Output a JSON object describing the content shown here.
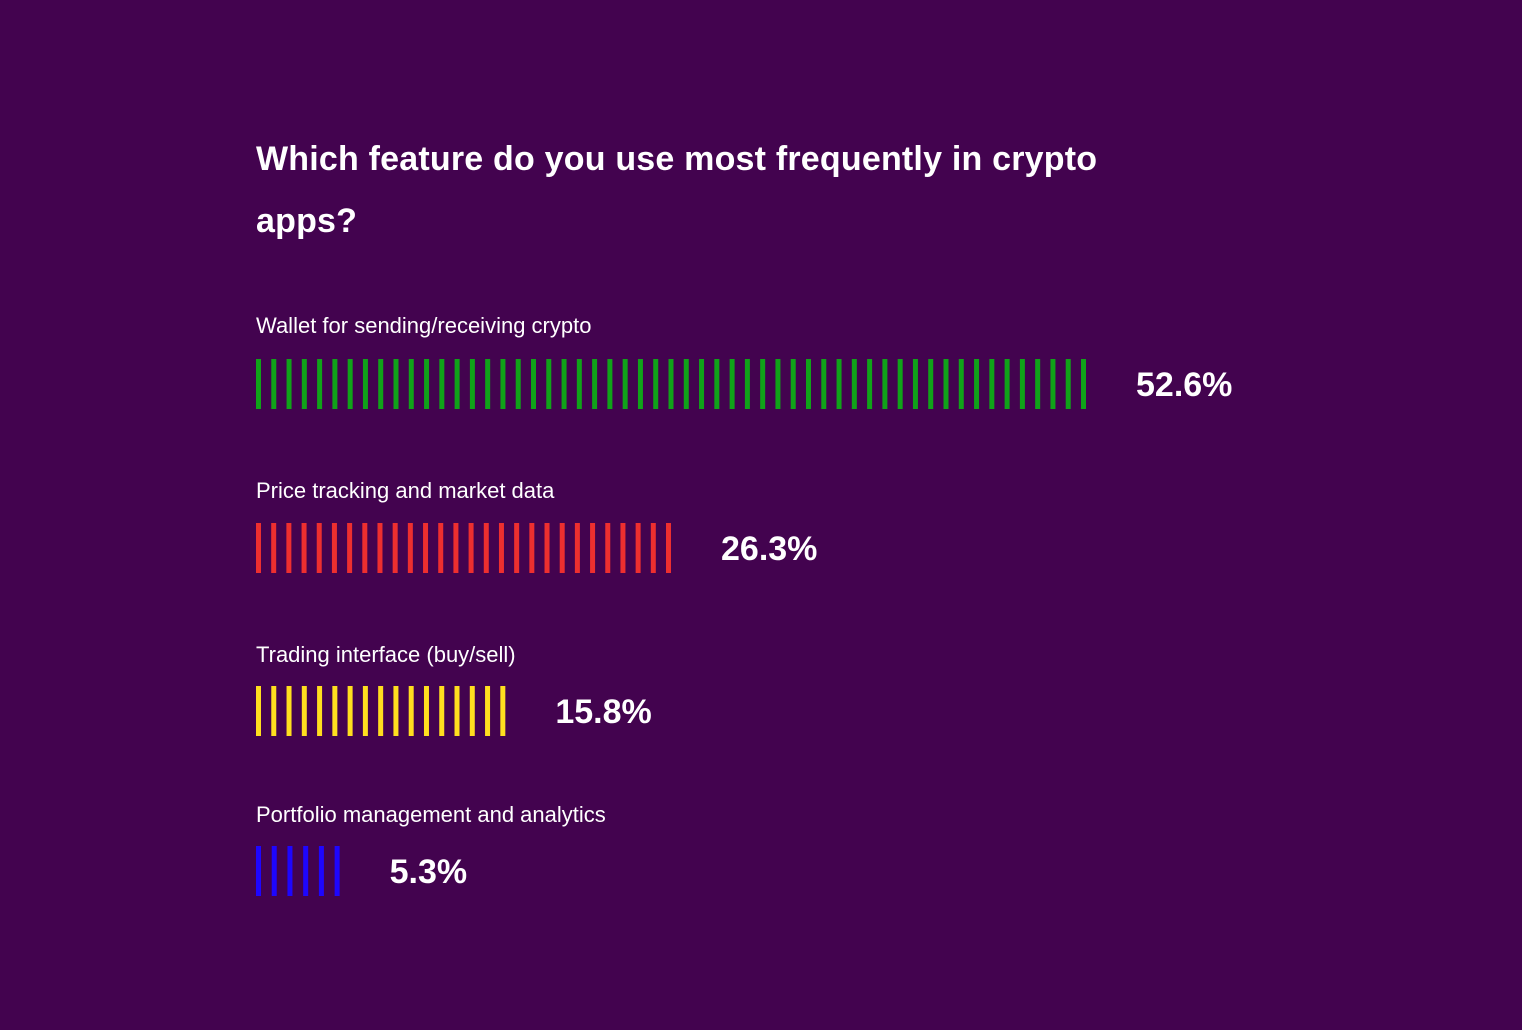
{
  "colors": {
    "background": "#43034f",
    "text": "#ffffff"
  },
  "chart_data": {
    "type": "bar",
    "orientation": "horizontal",
    "title": "Which feature do you use most frequently in crypto apps?",
    "categories": [
      "Wallet for sending/receiving crypto",
      "Price tracking and market data",
      "Trading interface (buy/sell)",
      "Portfolio management and analytics"
    ],
    "values": [
      52.6,
      26.3,
      15.8,
      5.3
    ],
    "value_labels": [
      "52.6%",
      "26.3%",
      "15.8%",
      "5.3%"
    ],
    "bar_colors": [
      "#10a319",
      "#ed2f2f",
      "#ffde1f",
      "#1e06ff"
    ],
    "bar_style": "striped",
    "xlim": [
      0,
      52.6
    ],
    "grid": false,
    "legend": "none"
  }
}
